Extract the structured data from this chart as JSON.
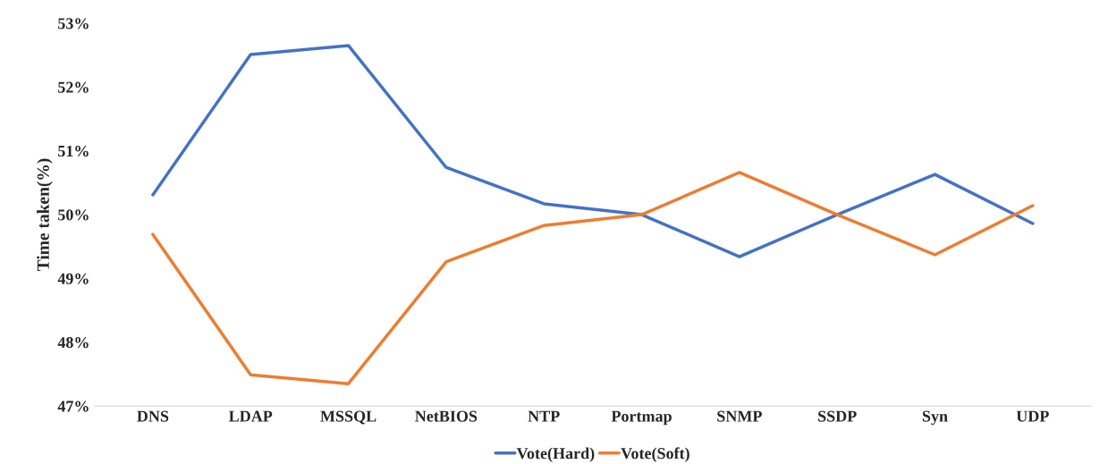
{
  "chart_data": {
    "type": "line",
    "ylabel": "Time taken(%)",
    "categories": [
      "DNS",
      "LDAP",
      "MSSQL",
      "NetBIOS",
      "NTP",
      "Portmap",
      "SNMP",
      "SSDP",
      "Syn",
      "UDP"
    ],
    "series": [
      {
        "name": "Vote(Hard)",
        "color": "#4472c4",
        "values": [
          50.31,
          52.51,
          52.65,
          50.74,
          50.17,
          50.0,
          49.34,
          50.0,
          50.63,
          49.86
        ]
      },
      {
        "name": "Vote(Soft)",
        "color": "#ed7d31",
        "values": [
          49.69,
          47.49,
          47.35,
          49.26,
          49.83,
          50.0,
          50.66,
          50.0,
          49.37,
          50.14
        ]
      }
    ],
    "ylim": [
      47,
      53
    ],
    "yticks": [
      {
        "value": 47,
        "label": "47%"
      },
      {
        "value": 48,
        "label": "48%"
      },
      {
        "value": 49,
        "label": "49%"
      },
      {
        "value": 50,
        "label": "50%"
      },
      {
        "value": 51,
        "label": "51%"
      },
      {
        "value": 52,
        "label": "52%"
      },
      {
        "value": 53,
        "label": "53%"
      }
    ],
    "grid": false,
    "legend": "bottom",
    "marker": "none",
    "line_style": "solid"
  }
}
